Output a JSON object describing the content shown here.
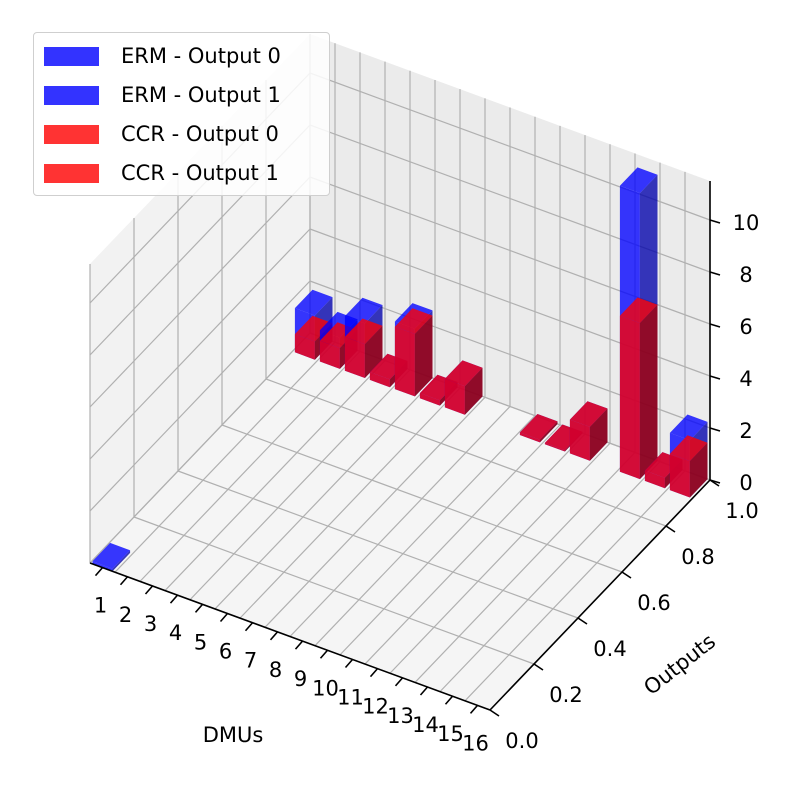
{
  "chart_data": {
    "type": "bar3d",
    "x_axis": {
      "label": "DMUs",
      "ticks": [
        "1",
        "2",
        "3",
        "4",
        "5",
        "6",
        "7",
        "8",
        "9",
        "10",
        "11",
        "12",
        "13",
        "14",
        "15",
        "16"
      ]
    },
    "y_axis": {
      "label": "Outputs",
      "ticks": [
        "0.0",
        "0.2",
        "0.4",
        "0.6",
        "0.8",
        "1.0"
      ],
      "range": [
        0,
        1
      ]
    },
    "z_axis": {
      "label": "",
      "ticks": [
        "0",
        "2",
        "4",
        "6",
        "8",
        "10"
      ],
      "range": [
        0,
        11.5
      ]
    },
    "grid": true,
    "legend_position": "upper-left",
    "series": [
      {
        "name": "ERM - Output 0",
        "color": "#0000ff",
        "output": 0,
        "values": [
          0.1,
          0,
          0,
          0,
          0,
          0,
          0,
          0,
          0,
          0,
          0,
          0,
          0,
          0,
          0,
          0
        ]
      },
      {
        "name": "ERM - Output 1",
        "color": "#0000ff",
        "output": 1,
        "values": [
          1.7,
          1.2,
          2.1,
          0.3,
          2.6,
          0.2,
          1.1,
          0,
          0,
          0.1,
          0.05,
          1.3,
          0,
          11.0,
          0.4,
          2.2
        ]
      },
      {
        "name": "CCR - Output 0",
        "color": "#ff0000",
        "output": 0,
        "values": [
          0,
          0,
          0,
          0,
          0,
          0,
          0,
          0,
          0,
          0,
          0,
          0,
          0,
          0,
          0,
          0
        ]
      },
      {
        "name": "CCR - Output 1",
        "color": "#ff0000",
        "output": 1,
        "values": [
          0.7,
          0.8,
          1.3,
          0.3,
          2.4,
          0.2,
          1.1,
          0,
          0,
          0.1,
          0.05,
          1.3,
          0,
          6.0,
          0.4,
          1.4
        ]
      }
    ]
  }
}
